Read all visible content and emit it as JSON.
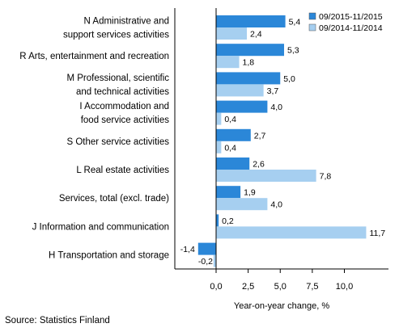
{
  "chart_data": {
    "type": "bar",
    "orientation": "horizontal",
    "categories": [
      [
        "N Administrative and",
        "support services activities"
      ],
      [
        "R Arts, entertainment and recreation"
      ],
      [
        "M Professional, scientific",
        "and technical activities"
      ],
      [
        "I Accommodation and",
        "food service activities"
      ],
      [
        "S Other service activities"
      ],
      [
        "L Real estate activities"
      ],
      [
        "Services, total (excl. trade)"
      ],
      [
        "J Information and communication"
      ],
      [
        "H Transportation and storage"
      ]
    ],
    "series": [
      {
        "name": "09/2015-11/2015",
        "color": "#2b87d8",
        "values": [
          5.4,
          5.3,
          5.0,
          4.0,
          2.7,
          2.6,
          1.9,
          0.2,
          -1.4
        ],
        "labels": [
          "5,4",
          "5,3",
          "5,0",
          "4,0",
          "2,7",
          "2,6",
          "1,9",
          "0,2",
          "-1,4"
        ]
      },
      {
        "name": "09/2014-11/2014",
        "color": "#a6cff0",
        "values": [
          2.4,
          1.8,
          3.7,
          0.4,
          0.4,
          7.8,
          4.0,
          11.7,
          -0.2
        ],
        "labels": [
          "2,4",
          "1,8",
          "3,7",
          "0,4",
          "0,4",
          "7,8",
          "4,0",
          "11,7",
          "-0,2"
        ]
      }
    ],
    "xlim": [
      -3.2,
      12.3
    ],
    "ticks": [
      0,
      2.5,
      5.0,
      7.5,
      10.0
    ],
    "tick_labels": [
      "0,0",
      "2,5",
      "5,0",
      "7,5",
      "10,0"
    ],
    "xlabel": "Year-on-year change, %",
    "legend_position": "top-right",
    "grid": false
  },
  "source": "Source: Statistics Finland"
}
